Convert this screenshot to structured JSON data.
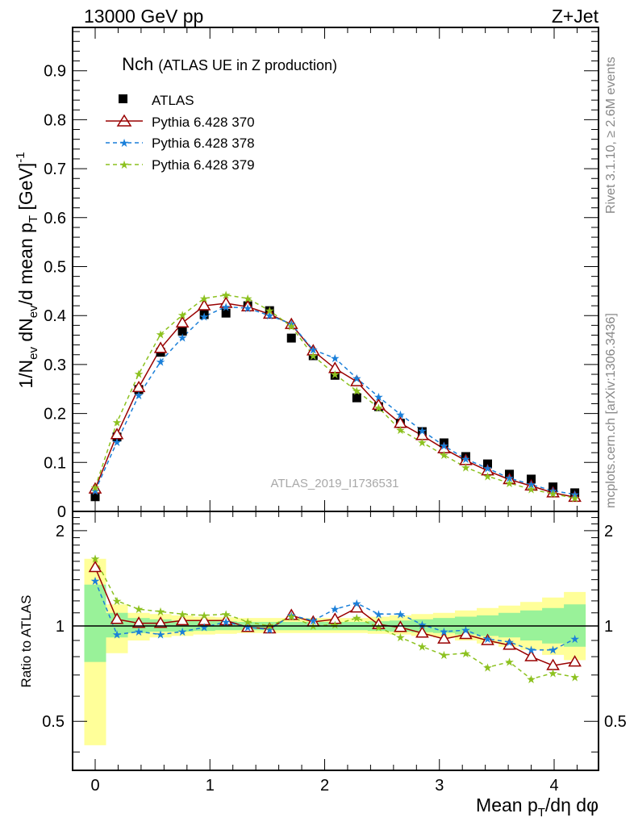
{
  "header": {
    "left": "13000 GeV pp",
    "right": "Z+Jet"
  },
  "plot": {
    "title_main": "Nch",
    "title_sub": "(ATLAS UE in Z production)",
    "watermark": "ATLAS_2019_I1736531",
    "side_top": "Rivet 3.1.10, ≥ 2.6M events",
    "side_bottom": "mcplots.cern.ch [arXiv:1306.3436]",
    "ylabel_html": "1/N_ev dN_ev/d mean p_T [GeV]^-1",
    "ratio_ylabel": "Ratio to ATLAS",
    "xlabel": "Mean p_T/dη dφ"
  },
  "legend": [
    {
      "label": "ATLAS"
    },
    {
      "label": "Pythia 6.428 370"
    },
    {
      "label": "Pythia 6.428 378"
    },
    {
      "label": "Pythia 6.428 379"
    }
  ],
  "colors": {
    "atlas": "#000000",
    "p370": "#990000",
    "p378": "#1a7fd9",
    "p379": "#8cc11f",
    "band_outer": "#ffff99",
    "band_inner": "#99f299"
  },
  "chart_data": [
    {
      "type": "scatter",
      "title": "Nch (ATLAS UE in Z production)",
      "xlabel": "Mean p_T/dη dφ",
      "ylabel": "1/N_ev dN_ev/d mean p_T [GeV]^-1",
      "xlim": [
        -0.2,
        4.35
      ],
      "ylim": [
        0,
        1.0
      ],
      "xticks": [
        0,
        1,
        2,
        3,
        4
      ],
      "xtick_labels": [
        "0",
        "1",
        "2",
        "3",
        "4"
      ],
      "yticks": [
        0,
        0.1,
        0.2,
        0.3,
        0.4,
        0.5,
        0.6,
        0.7,
        0.8,
        0.9
      ],
      "ytick_labels": [
        "0",
        "0.1",
        "0.2",
        "0.3",
        "0.4",
        "0.5",
        "0.6",
        "0.7",
        "0.8",
        "0.9"
      ],
      "x": [
        0,
        0.19,
        0.38,
        0.57,
        0.76,
        0.95,
        1.14,
        1.33,
        1.52,
        1.71,
        1.9,
        2.09,
        2.28,
        2.47,
        2.66,
        2.85,
        3.04,
        3.23,
        3.42,
        3.61,
        3.8,
        3.99,
        4.18
      ],
      "series": [
        {
          "name": "ATLAS",
          "style": "data",
          "values": [
            0.03,
            0.152,
            0.249,
            0.325,
            0.368,
            0.402,
            0.405,
            0.42,
            0.41,
            0.354,
            0.318,
            0.278,
            0.232,
            0.214,
            0.18,
            0.163,
            0.14,
            0.112,
            0.097,
            0.076,
            0.066,
            0.05,
            0.038
          ]
        },
        {
          "name": "Pythia 6.428 370",
          "style": "triangle",
          "values": [
            0.046,
            0.157,
            0.253,
            0.333,
            0.385,
            0.42,
            0.425,
            0.418,
            0.403,
            0.382,
            0.328,
            0.292,
            0.265,
            0.217,
            0.18,
            0.155,
            0.128,
            0.104,
            0.083,
            0.065,
            0.052,
            0.038,
            0.029
          ]
        },
        {
          "name": "Pythia 6.428 378",
          "style": "star-dash",
          "values": [
            0.042,
            0.142,
            0.237,
            0.306,
            0.355,
            0.398,
            0.418,
            0.415,
            0.4,
            0.383,
            0.33,
            0.313,
            0.272,
            0.234,
            0.198,
            0.165,
            0.134,
            0.107,
            0.088,
            0.068,
            0.055,
            0.042,
            0.035
          ]
        },
        {
          "name": "Pythia 6.428 379",
          "style": "star-dash",
          "values": [
            0.049,
            0.182,
            0.281,
            0.362,
            0.401,
            0.435,
            0.442,
            0.435,
            0.41,
            0.378,
            0.318,
            0.28,
            0.246,
            0.212,
            0.166,
            0.141,
            0.115,
            0.09,
            0.072,
            0.058,
            0.045,
            0.036,
            0.027
          ]
        }
      ]
    },
    {
      "type": "line",
      "title": "Ratio to ATLAS",
      "ylabel": "Ratio to ATLAS",
      "xlim": [
        -0.2,
        4.35
      ],
      "ylim": [
        0.35,
        2.3
      ],
      "yscale": "log",
      "yticks": [
        0.5,
        1,
        2
      ],
      "ytick_labels": [
        "0.5",
        "1",
        "2"
      ],
      "x": [
        0,
        0.19,
        0.38,
        0.57,
        0.76,
        0.95,
        1.14,
        1.33,
        1.52,
        1.71,
        1.9,
        2.09,
        2.28,
        2.47,
        2.66,
        2.85,
        3.04,
        3.23,
        3.42,
        3.61,
        3.8,
        3.99,
        4.18
      ],
      "bands": {
        "outer_lo": [
          0.42,
          0.82,
          0.9,
          0.92,
          0.93,
          0.94,
          0.945,
          0.95,
          0.95,
          0.95,
          0.95,
          0.95,
          0.95,
          0.945,
          0.94,
          0.93,
          0.92,
          0.9,
          0.88,
          0.86,
          0.84,
          0.81,
          0.78
        ],
        "outer_hi": [
          1.63,
          1.17,
          1.1,
          1.09,
          1.08,
          1.07,
          1.065,
          1.06,
          1.06,
          1.06,
          1.06,
          1.06,
          1.06,
          1.07,
          1.08,
          1.09,
          1.1,
          1.12,
          1.14,
          1.16,
          1.19,
          1.23,
          1.28
        ],
        "inner_lo": [
          0.77,
          0.92,
          0.95,
          0.96,
          0.96,
          0.965,
          0.97,
          0.97,
          0.97,
          0.97,
          0.97,
          0.97,
          0.97,
          0.965,
          0.96,
          0.955,
          0.95,
          0.94,
          0.93,
          0.92,
          0.9,
          0.88,
          0.86
        ],
        "inner_hi": [
          1.35,
          1.1,
          1.06,
          1.05,
          1.04,
          1.04,
          1.035,
          1.03,
          1.03,
          1.03,
          1.03,
          1.03,
          1.03,
          1.035,
          1.04,
          1.05,
          1.06,
          1.07,
          1.08,
          1.1,
          1.12,
          1.14,
          1.17
        ]
      },
      "series": [
        {
          "name": "Pythia 6.428 370",
          "values": [
            1.53,
            1.05,
            1.02,
            1.02,
            1.04,
            1.04,
            1.04,
            0.99,
            0.98,
            1.08,
            1.03,
            1.05,
            1.14,
            1.01,
            0.99,
            0.95,
            0.91,
            0.94,
            0.9,
            0.87,
            0.8,
            0.75,
            0.77
          ]
        },
        {
          "name": "Pythia 6.428 378",
          "values": [
            1.39,
            0.94,
            0.96,
            0.94,
            0.96,
            0.99,
            1.03,
            0.99,
            0.975,
            1.08,
            1.04,
            1.13,
            1.18,
            1.09,
            1.09,
            1.01,
            0.96,
            0.97,
            0.91,
            0.89,
            0.84,
            0.84,
            0.91
          ]
        },
        {
          "name": "Pythia 6.428 379",
          "values": [
            1.63,
            1.2,
            1.13,
            1.11,
            1.09,
            1.08,
            1.09,
            1.03,
            1.0,
            1.07,
            1.0,
            1.01,
            1.06,
            0.99,
            0.92,
            0.86,
            0.81,
            0.82,
            0.74,
            0.77,
            0.68,
            0.71,
            0.69
          ]
        }
      ]
    }
  ]
}
